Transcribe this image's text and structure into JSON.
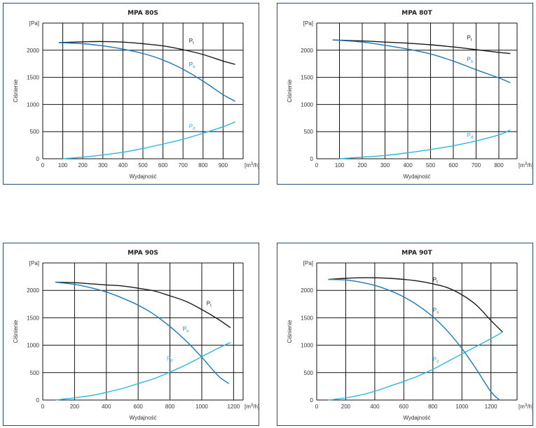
{
  "colors": {
    "pt": "#1a1a1a",
    "ps": "#1b78bd",
    "pd": "#29b6e6",
    "grid": "#111111",
    "frame": "#1f4f7a"
  },
  "chart_data": [
    {
      "type": "line",
      "title": "MPA 80S",
      "xlabel": "Wydajność",
      "ylabel": "Ciśnienie",
      "unit_y": "[Pa]",
      "unit_x": "[m3/h]",
      "xlim": [
        0,
        1000
      ],
      "ylim": [
        0,
        2500
      ],
      "xticks": [
        0,
        100,
        200,
        300,
        400,
        500,
        600,
        700,
        800,
        900
      ],
      "yticks": [
        0,
        500,
        1000,
        1500,
        2000
      ],
      "series": [
        {
          "name": "Pt",
          "key": "pt",
          "x": [
            80,
            200,
            300,
            400,
            500,
            600,
            700,
            800,
            900,
            960
          ],
          "y": [
            2140,
            2155,
            2160,
            2150,
            2120,
            2080,
            2010,
            1920,
            1800,
            1740
          ]
        },
        {
          "name": "Ps",
          "key": "ps",
          "x": [
            80,
            200,
            300,
            400,
            500,
            600,
            700,
            800,
            900,
            960
          ],
          "y": [
            2140,
            2120,
            2080,
            2020,
            1940,
            1820,
            1650,
            1430,
            1180,
            1060
          ]
        },
        {
          "name": "Pd",
          "key": "pd",
          "x": [
            100,
            200,
            300,
            400,
            500,
            600,
            700,
            800,
            900,
            960
          ],
          "y": [
            0,
            30,
            70,
            120,
            190,
            270,
            360,
            470,
            590,
            680
          ]
        }
      ],
      "labels": {
        "pt": {
          "x": 730,
          "y": 2140
        },
        "ps": {
          "x": 730,
          "y": 1700
        },
        "pd": {
          "x": 730,
          "y": 560
        }
      }
    },
    {
      "type": "line",
      "title": "MPA 80T",
      "xlabel": "Wydajność",
      "ylabel": "Ciśnienie",
      "unit_y": "[Pa]",
      "unit_x": "[m3/h]",
      "xlim": [
        0,
        880
      ],
      "ylim": [
        0,
        2500
      ],
      "xticks": [
        0,
        100,
        200,
        300,
        400,
        500,
        600,
        700,
        800
      ],
      "yticks": [
        0,
        500,
        1000,
        1500,
        2000
      ],
      "series": [
        {
          "name": "Pt",
          "key": "pt",
          "x": [
            70,
            200,
            300,
            400,
            500,
            600,
            700,
            800,
            850
          ],
          "y": [
            2190,
            2170,
            2150,
            2130,
            2100,
            2060,
            2010,
            1960,
            1940
          ]
        },
        {
          "name": "Ps",
          "key": "ps",
          "x": [
            70,
            200,
            300,
            400,
            500,
            600,
            700,
            800,
            850
          ],
          "y": [
            2190,
            2150,
            2090,
            2020,
            1930,
            1800,
            1640,
            1490,
            1400
          ]
        },
        {
          "name": "Pd",
          "key": "pd",
          "x": [
            100,
            200,
            300,
            400,
            500,
            600,
            700,
            800,
            850
          ],
          "y": [
            0,
            30,
            60,
            110,
            170,
            240,
            330,
            440,
            530
          ]
        }
      ],
      "labels": {
        "pt": {
          "x": 660,
          "y": 2200
        },
        "ps": {
          "x": 660,
          "y": 1800
        },
        "pd": {
          "x": 660,
          "y": 400
        }
      }
    },
    {
      "type": "line",
      "title": "MPA 90S",
      "xlabel": "Wydajność",
      "ylabel": "Ciśnienie",
      "unit_y": "[Pa]",
      "unit_x": "[m3/h]",
      "xlim": [
        0,
        1260
      ],
      "ylim": [
        0,
        2500
      ],
      "xticks": [
        0,
        200,
        400,
        600,
        800,
        1000,
        1200
      ],
      "yticks": [
        0,
        500,
        1000,
        1500,
        2000
      ],
      "series": [
        {
          "name": "Pt",
          "key": "pt",
          "x": [
            80,
            200,
            300,
            400,
            500,
            600,
            700,
            800,
            900,
            1000,
            1100,
            1180
          ],
          "y": [
            2150,
            2140,
            2120,
            2100,
            2080,
            2040,
            1990,
            1900,
            1800,
            1650,
            1480,
            1320
          ]
        },
        {
          "name": "Ps",
          "key": "ps",
          "x": [
            80,
            200,
            300,
            400,
            500,
            600,
            700,
            800,
            900,
            1000,
            1100,
            1170
          ],
          "y": [
            2150,
            2110,
            2050,
            1970,
            1860,
            1730,
            1560,
            1340,
            1080,
            780,
            450,
            300
          ]
        },
        {
          "name": "Pd",
          "key": "pd",
          "x": [
            80,
            200,
            300,
            400,
            500,
            600,
            700,
            800,
            900,
            1000,
            1100,
            1180
          ],
          "y": [
            0,
            40,
            80,
            140,
            210,
            300,
            390,
            510,
            640,
            790,
            940,
            1050
          ]
        }
      ],
      "labels": {
        "pt": {
          "x": 1030,
          "y": 1730
        },
        "ps": {
          "x": 880,
          "y": 1260
        },
        "pd": {
          "x": 780,
          "y": 720
        }
      }
    },
    {
      "type": "line",
      "title": "MPA 90T",
      "xlabel": "Wydajność",
      "ylabel": "Ciśnienie",
      "unit_y": "[Pa]",
      "unit_x": "[m3/h]",
      "xlim": [
        0,
        1380
      ],
      "ylim": [
        0,
        2500
      ],
      "xticks": [
        0,
        200,
        400,
        600,
        800,
        1000,
        1200
      ],
      "yticks": [
        0,
        500,
        1000,
        1500,
        2000
      ],
      "series": [
        {
          "name": "Pt",
          "key": "pt",
          "x": [
            80,
            200,
            300,
            400,
            500,
            600,
            700,
            800,
            900,
            1000,
            1100,
            1200,
            1280
          ],
          "y": [
            2200,
            2220,
            2230,
            2230,
            2220,
            2200,
            2170,
            2120,
            2050,
            1920,
            1730,
            1450,
            1240
          ]
        },
        {
          "name": "Ps",
          "key": "ps",
          "x": [
            80,
            200,
            300,
            400,
            500,
            600,
            700,
            800,
            900,
            1000,
            1100,
            1200,
            1260
          ],
          "y": [
            2200,
            2190,
            2150,
            2090,
            2000,
            1880,
            1720,
            1520,
            1260,
            940,
            560,
            150,
            0
          ]
        },
        {
          "name": "Pd",
          "key": "pd",
          "x": [
            80,
            200,
            300,
            400,
            500,
            600,
            700,
            800,
            900,
            1000,
            1100,
            1200,
            1280
          ],
          "y": [
            0,
            40,
            90,
            160,
            250,
            340,
            440,
            560,
            700,
            840,
            980,
            1120,
            1240
          ]
        }
      ],
      "labels": {
        "pt": {
          "x": 800,
          "y": 2160
        },
        "ps": {
          "x": 800,
          "y": 1610
        },
        "pd": {
          "x": 800,
          "y": 710
        }
      }
    }
  ]
}
